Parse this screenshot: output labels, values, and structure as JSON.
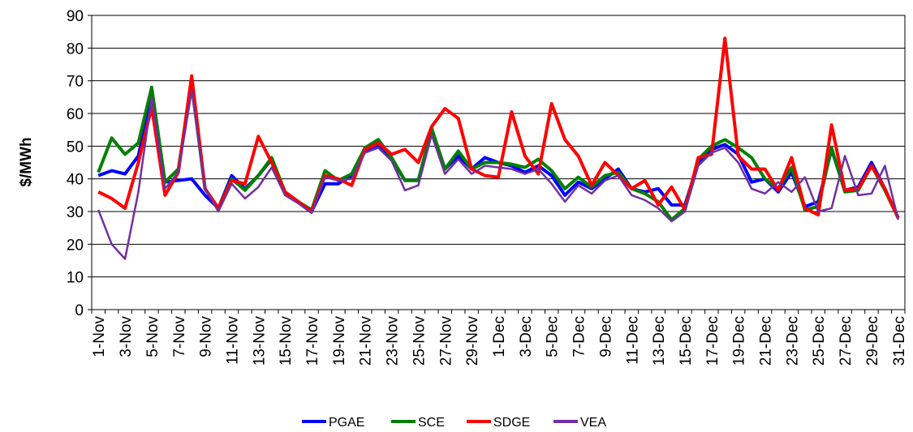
{
  "chart_data": {
    "type": "line",
    "y_label": "$/MWh",
    "categories": [
      "1-Nov",
      null,
      "3-Nov",
      null,
      "5-Nov",
      null,
      "7-Nov",
      null,
      "9-Nov",
      null,
      "11-Nov",
      null,
      "13-Nov",
      null,
      "15-Nov",
      null,
      "17-Nov",
      null,
      "19-Nov",
      null,
      "21-Nov",
      null,
      "23-Nov",
      null,
      "25-Nov",
      null,
      "27-Nov",
      null,
      "29-Nov",
      null,
      "1-Dec",
      null,
      "3-Dec",
      null,
      "5-Dec",
      null,
      "7-Dec",
      null,
      "9-Dec",
      null,
      "11-Dec",
      null,
      "13-Dec",
      null,
      "15-Dec",
      null,
      "17-Dec",
      null,
      "19-Dec",
      null,
      "21-Dec",
      null,
      "23-Dec",
      null,
      "25-Dec",
      null,
      "27-Dec",
      null,
      "29-Dec",
      null,
      "31-Dec"
    ],
    "series": [
      {
        "name": "PGAE",
        "color": "#0000ff",
        "values": [
          41,
          42.5,
          41.5,
          47,
          66,
          39,
          39.5,
          40,
          35,
          31,
          41,
          37,
          41,
          46,
          36,
          33,
          30,
          38.5,
          38.5,
          41,
          48.5,
          50,
          46,
          39.5,
          39.5,
          55,
          43,
          47,
          43,
          46.5,
          45,
          44,
          42,
          44,
          41,
          35,
          39,
          37,
          40,
          43,
          37,
          36,
          37,
          32,
          32,
          45,
          49,
          50.5,
          47.5,
          39,
          40,
          36,
          42,
          31.5,
          33,
          49,
          36.5,
          37.5,
          45,
          37,
          28
        ]
      },
      {
        "name": "SCE",
        "color": "#008000",
        "values": [
          42,
          52.5,
          47.5,
          51,
          68,
          39,
          43,
          69,
          37,
          31,
          40,
          36.5,
          41,
          46.5,
          36,
          33,
          30.5,
          42.5,
          39.5,
          41.5,
          49.5,
          52,
          46.5,
          39.5,
          39.5,
          55.5,
          43,
          48.5,
          43,
          45,
          45,
          44.5,
          43.5,
          46,
          42.5,
          37,
          40.5,
          37.5,
          41,
          42,
          37,
          35.5,
          33,
          27.5,
          31,
          46,
          50,
          52,
          49.5,
          46.5,
          40,
          37,
          43.5,
          30.5,
          31.5,
          49.5,
          36,
          36.5,
          44,
          36.5,
          28
        ]
      },
      {
        "name": "SDGE",
        "color": "#ff0000",
        "values": [
          36,
          34,
          31,
          45,
          62,
          35,
          42,
          71.5,
          37,
          31,
          39.5,
          38.5,
          53,
          45,
          36,
          33,
          30,
          41,
          40,
          38,
          49,
          51,
          47.5,
          49,
          45,
          56,
          61.5,
          58.5,
          43,
          41,
          40.5,
          60.5,
          47,
          41.5,
          63,
          52,
          47,
          38,
          45,
          41,
          37,
          39.5,
          32,
          37.5,
          30.5,
          46.5,
          47.5,
          83,
          47,
          43,
          43,
          36.5,
          46.5,
          31,
          29,
          56.5,
          36.5,
          37,
          44,
          37,
          28
        ]
      },
      {
        "name": "VEA",
        "color": "#7030a0",
        "values": [
          30.5,
          20,
          15.5,
          36,
          65,
          37,
          42,
          67,
          37,
          30,
          38.5,
          34,
          37.5,
          43.5,
          35,
          32.5,
          29.5,
          40.5,
          39.5,
          40,
          48,
          49.5,
          45.5,
          36.5,
          38,
          53.5,
          41.5,
          46,
          41.5,
          44,
          43.5,
          43,
          41.5,
          43,
          38.5,
          33,
          38,
          35.5,
          39.5,
          41,
          35,
          33.5,
          31,
          27,
          30,
          44,
          48,
          49.5,
          45,
          37,
          35.5,
          39,
          36,
          40.5,
          30,
          31,
          47,
          35,
          35.5,
          44,
          27.5
        ]
      }
    ],
    "ylim": [
      0,
      90
    ],
    "yticks": [
      0,
      10,
      20,
      30,
      40,
      50,
      60,
      70,
      80,
      90
    ],
    "grid": true,
    "legend": "bottom"
  }
}
